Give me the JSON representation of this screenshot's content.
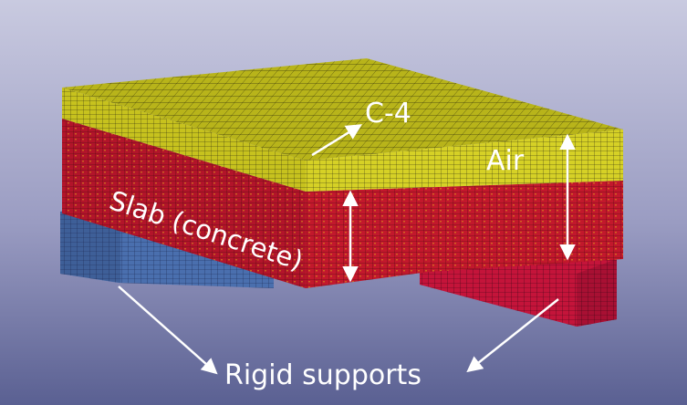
{
  "labels": {
    "c4": "C-4",
    "air": "Air",
    "slab": "Slab (concrete)",
    "supports": "Rigid supports"
  },
  "colors": {
    "background_top": "#c9cae0",
    "background_bottom": "#5a6092",
    "c4_layer": "#b8b41a",
    "concrete_layer": "#c2182c",
    "left_support": "#4a6fae",
    "right_support": "#c4143a",
    "mesh_lines": "#1a1a10",
    "annotation": "#ffffff"
  }
}
